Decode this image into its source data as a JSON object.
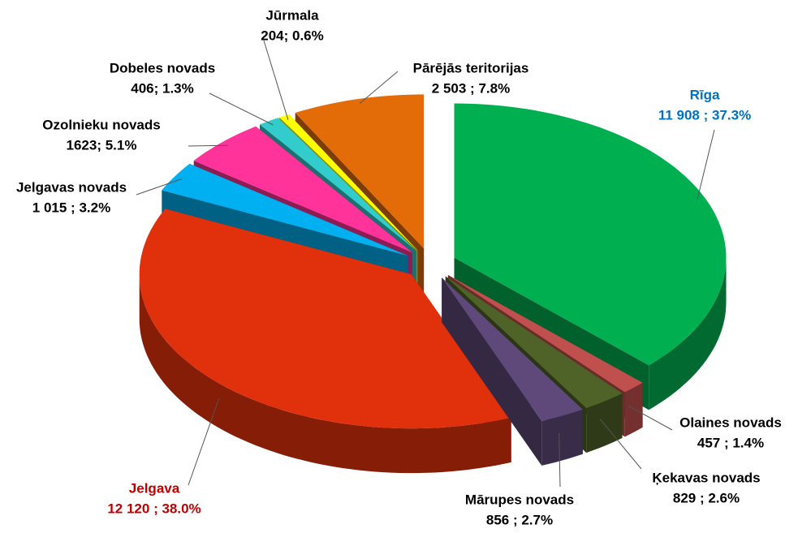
{
  "chart_data": {
    "type": "pie3d",
    "categories": [
      "Rīga",
      "Olaines novads",
      "Ķekavas novads",
      "Mārupes novads",
      "Jelgava",
      "Jelgavas novads",
      "Ozolnieku novads",
      "Dobeles novads",
      "Jūrmala",
      "Pārējās teritorijas"
    ],
    "values": [
      11908,
      457,
      829,
      856,
      12120,
      1015,
      1623,
      406,
      204,
      2503
    ],
    "value_labels": [
      "11 908 ; 37.3%",
      "457 ; 1.4%",
      "829 ; 2.6%",
      "856 ; 2.7%",
      "12 120 ; 38.0%",
      "1 015 ; 3.2%",
      "1623; 5.1%",
      "406; 1.3%",
      "204; 0.6%",
      "2 503 ; 7.8%"
    ],
    "colors": [
      "#00b050",
      "#c0504d",
      "#4f6228",
      "#5f497a",
      "#e0300c",
      "#00b0f0",
      "#ff3399",
      "#33cccc",
      "#ffff00",
      "#e36c09"
    ],
    "label_colors": [
      "#0070c0",
      "#000000",
      "#000000",
      "#000000",
      "#c00000",
      "#000000",
      "#000000",
      "#000000",
      "#000000",
      "#000000"
    ]
  }
}
